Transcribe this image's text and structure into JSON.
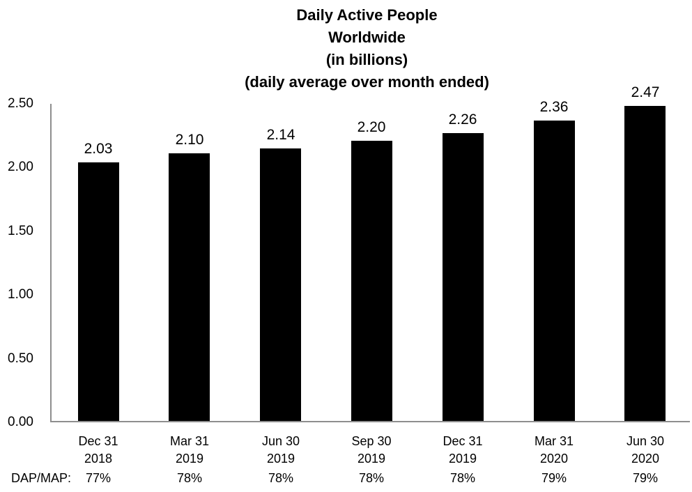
{
  "chart_data": {
    "type": "bar",
    "title": "Daily Active People Worldwide (in billions) (daily average over month ended)",
    "title_lines": [
      "Daily Active People",
      "Worldwide",
      "(in billions)",
      "(daily average over month ended)"
    ],
    "categories": [
      [
        "Dec 31",
        "2018"
      ],
      [
        "Mar 31",
        "2019"
      ],
      [
        "Jun 30",
        "2019"
      ],
      [
        "Sep 30",
        "2019"
      ],
      [
        "Dec 31",
        "2019"
      ],
      [
        "Mar 31",
        "2020"
      ],
      [
        "Jun 30",
        "2020"
      ]
    ],
    "values": [
      2.03,
      2.1,
      2.14,
      2.2,
      2.26,
      2.36,
      2.47
    ],
    "data_labels": [
      "2.03",
      "2.10",
      "2.14",
      "2.20",
      "2.26",
      "2.36",
      "2.47"
    ],
    "y_ticks": [
      "0.00",
      "0.50",
      "1.00",
      "1.50",
      "2.00",
      "2.50"
    ],
    "ylim": [
      0,
      2.5
    ],
    "xlabel": "",
    "ylabel": "",
    "grid": false,
    "legend": false,
    "bar_color": "#000000",
    "axis_color": "#8e8e8e",
    "dap_map": {
      "row_label": "DAP/MAP:",
      "values": [
        "77%",
        "78%",
        "78%",
        "78%",
        "78%",
        "79%",
        "79%"
      ]
    }
  }
}
